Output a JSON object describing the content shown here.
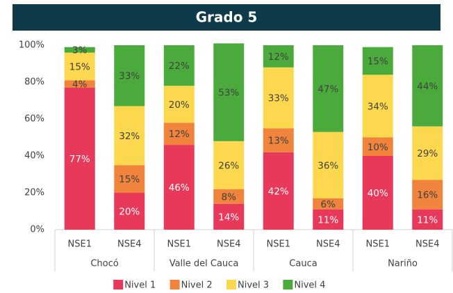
{
  "chart_data": {
    "type": "stacked_bar",
    "title": "Grado 5",
    "groups": [
      "Chocó",
      "Valle del Cauca",
      "Cauca",
      "Nariño"
    ],
    "categories": [
      "NSE1",
      "NSE4",
      "NSE1",
      "NSE4",
      "NSE1",
      "NSE4",
      "NSE1",
      "NSE4"
    ],
    "series": [
      {
        "name": "Nivel 1",
        "color": "#e8395a",
        "values": [
          77,
          20,
          46,
          14,
          42,
          11,
          40,
          11
        ],
        "value_labels": [
          "77%",
          "20%",
          "46%",
          "14%",
          "42%",
          "11%",
          "40%",
          "11%"
        ]
      },
      {
        "name": "Nivel 2",
        "color": "#f0843c",
        "values": [
          4,
          15,
          12,
          8,
          13,
          6,
          10,
          16
        ],
        "value_labels": [
          "4%",
          "15%",
          "12%",
          "8%",
          "13%",
          "6%",
          "10%",
          "16%"
        ]
      },
      {
        "name": "Nivel 3",
        "color": "#fbd84d",
        "values": [
          15,
          32,
          20,
          26,
          33,
          36,
          34,
          29
        ],
        "value_labels": [
          "15%",
          "32%",
          "20%",
          "26%",
          "33%",
          "36%",
          "34%",
          "29%"
        ]
      },
      {
        "name": "Nivel 4",
        "color": "#4aab3c",
        "values": [
          3,
          33,
          22,
          53,
          12,
          47,
          15,
          44
        ],
        "value_labels": [
          "3%",
          "33%",
          "22%",
          "53%",
          "12%",
          "47%",
          "15%",
          "44%"
        ]
      }
    ],
    "ylim": [
      0,
      100
    ],
    "yticks": [
      {
        "value": 0,
        "label": "0%"
      },
      {
        "value": 20,
        "label": "20%"
      },
      {
        "value": 40,
        "label": "40%"
      },
      {
        "value": 60,
        "label": "60%"
      },
      {
        "value": 80,
        "label": "80%"
      },
      {
        "value": 100,
        "label": "100%"
      }
    ],
    "legend": "bottom"
  }
}
